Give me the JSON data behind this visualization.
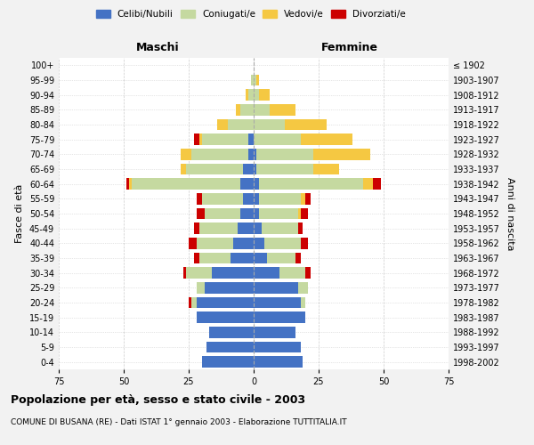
{
  "age_groups": [
    "0-4",
    "5-9",
    "10-14",
    "15-19",
    "20-24",
    "25-29",
    "30-34",
    "35-39",
    "40-44",
    "45-49",
    "50-54",
    "55-59",
    "60-64",
    "65-69",
    "70-74",
    "75-79",
    "80-84",
    "85-89",
    "90-94",
    "95-99",
    "100+"
  ],
  "birth_years": [
    "1998-2002",
    "1993-1997",
    "1988-1992",
    "1983-1987",
    "1978-1982",
    "1973-1977",
    "1968-1972",
    "1963-1967",
    "1958-1962",
    "1953-1957",
    "1948-1952",
    "1943-1947",
    "1938-1942",
    "1933-1937",
    "1928-1932",
    "1923-1927",
    "1918-1922",
    "1913-1917",
    "1908-1912",
    "1903-1907",
    "≤ 1902"
  ],
  "male": {
    "celibi": [
      20,
      18,
      17,
      22,
      22,
      19,
      16,
      9,
      8,
      6,
      5,
      4,
      5,
      4,
      2,
      2,
      0,
      0,
      0,
      0,
      0
    ],
    "coniugati": [
      0,
      0,
      0,
      0,
      2,
      3,
      10,
      12,
      14,
      15,
      14,
      16,
      42,
      22,
      22,
      18,
      10,
      5,
      2,
      1,
      0
    ],
    "vedovi": [
      0,
      0,
      0,
      0,
      0,
      0,
      0,
      0,
      0,
      0,
      0,
      0,
      1,
      2,
      4,
      1,
      4,
      2,
      1,
      0,
      0
    ],
    "divorziati": [
      0,
      0,
      0,
      0,
      1,
      0,
      1,
      2,
      3,
      2,
      3,
      2,
      1,
      0,
      0,
      2,
      0,
      0,
      0,
      0,
      0
    ]
  },
  "female": {
    "nubili": [
      19,
      18,
      16,
      20,
      18,
      17,
      10,
      5,
      4,
      3,
      2,
      2,
      2,
      1,
      1,
      0,
      0,
      0,
      0,
      0,
      0
    ],
    "coniugate": [
      0,
      0,
      0,
      0,
      2,
      4,
      10,
      11,
      14,
      14,
      15,
      16,
      40,
      22,
      22,
      18,
      12,
      6,
      2,
      1,
      0
    ],
    "vedove": [
      0,
      0,
      0,
      0,
      0,
      0,
      0,
      0,
      0,
      0,
      1,
      2,
      4,
      10,
      22,
      20,
      16,
      10,
      4,
      1,
      0
    ],
    "divorziate": [
      0,
      0,
      0,
      0,
      0,
      0,
      2,
      2,
      3,
      2,
      3,
      2,
      3,
      0,
      0,
      0,
      0,
      0,
      0,
      0,
      0
    ]
  },
  "colors": {
    "celibi_nubili": "#4472C4",
    "coniugati": "#C5D9A0",
    "vedovi": "#F5C842",
    "divorziati": "#CC0000"
  },
  "xlim": 75,
  "title": "Popolazione per età, sesso e stato civile - 2003",
  "subtitle": "COMUNE DI BUSANA (RE) - Dati ISTAT 1° gennaio 2003 - Elaborazione TUTTITALIA.IT",
  "ylabel_left": "Fasce di età",
  "ylabel_right": "Anni di nascita",
  "xlabel_left": "Maschi",
  "xlabel_right": "Femmine",
  "bg_color": "#f2f2f2",
  "plot_bg_color": "#ffffff"
}
